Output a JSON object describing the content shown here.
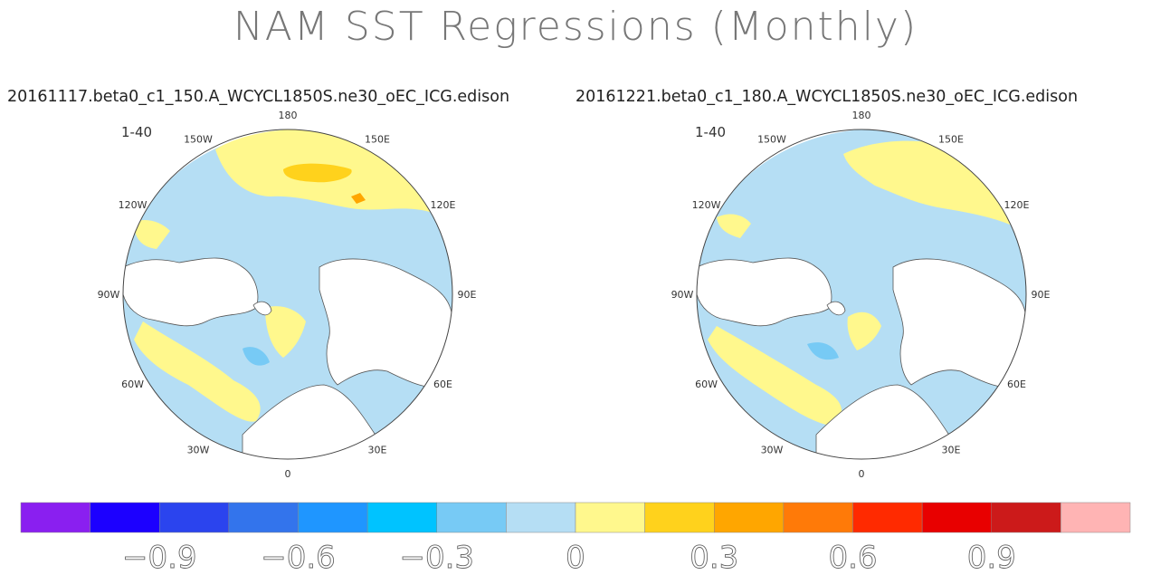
{
  "chart_data": {
    "type": "heatmap",
    "title": "NAM SST Regressions (Monthly)",
    "panels": [
      {
        "subtitle": "20161117.beta0_c1_150.A_WCYCL1850S.ne30_oEC_ICG.edison",
        "season_label": "1-40"
      },
      {
        "subtitle": "20161221.beta0_c1_180.A_WCYCL1850S.ne30_oEC_ICG.edison",
        "season_label": "1-40"
      }
    ],
    "projection": "north-polar-stereographic",
    "longitude_labels": [
      "180",
      "150E",
      "120E",
      "90E",
      "60E",
      "30E",
      "0",
      "30W",
      "60W",
      "90W",
      "120W",
      "150W"
    ],
    "colorbar": {
      "levels": [
        -1.05,
        -0.9,
        -0.75,
        -0.6,
        -0.45,
        -0.3,
        -0.15,
        0,
        0.15,
        0.3,
        0.45,
        0.6,
        0.75,
        0.9,
        1.05
      ],
      "colors": [
        "#8a1ff0",
        "#1c00ff",
        "#2b44ee",
        "#3374ec",
        "#1f96ff",
        "#00c3ff",
        "#77caf5",
        "#b5def4",
        "#fff88d",
        "#ffd21c",
        "#ffa600",
        "#ff7a08",
        "#ff2a00",
        "#e80000",
        "#cc1a1a",
        "#ffb4b4"
      ],
      "tick_labels": [
        "−0.9",
        "−0.6",
        "−0.3",
        "0",
        "0.3",
        "0.6",
        "0.9"
      ],
      "tick_values": [
        -0.9,
        -0.6,
        -0.3,
        0,
        0.3,
        0.6,
        0.9
      ]
    }
  }
}
